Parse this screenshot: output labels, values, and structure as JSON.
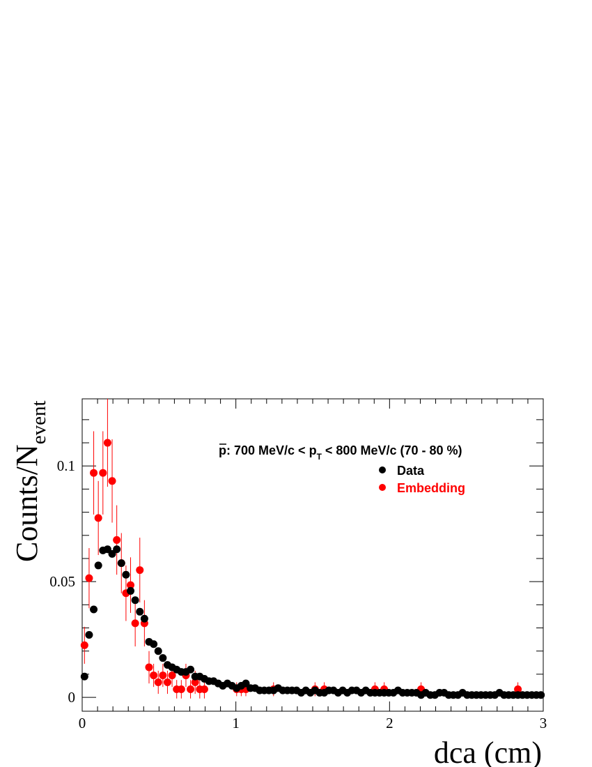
{
  "chart_data": {
    "type": "scatter",
    "title": "",
    "annotation": {
      "particle": "p",
      "text": ": 700 MeV/c < p",
      "subscript": "T",
      "text_after": " < 800 MeV/c (70 - 80 %)"
    },
    "xlabel": "dca (cm)",
    "ylabel": "Counts/N",
    "ylabel_subscript": "event",
    "xlim": [
      0,
      3
    ],
    "ylim": [
      -0.006,
      0.129
    ],
    "x_ticks": [
      {
        "value": 0,
        "label": "0"
      },
      {
        "value": 1,
        "label": "1"
      },
      {
        "value": 2,
        "label": "2"
      },
      {
        "value": 3,
        "label": "3"
      }
    ],
    "y_ticks": [
      {
        "value": 0,
        "label": "0"
      },
      {
        "value": 0.05,
        "label": "0.05"
      },
      {
        "value": 0.1,
        "label": "0.1"
      }
    ],
    "legend_position": "top-right",
    "grid": false,
    "series": [
      {
        "name": "Data",
        "color": "#000000",
        "x": [
          0.015,
          0.045,
          0.075,
          0.105,
          0.135,
          0.165,
          0.195,
          0.225,
          0.255,
          0.285,
          0.315,
          0.345,
          0.375,
          0.405,
          0.435,
          0.465,
          0.495,
          0.525,
          0.555,
          0.585,
          0.615,
          0.645,
          0.675,
          0.705,
          0.735,
          0.765,
          0.795,
          0.825,
          0.855,
          0.885,
          0.915,
          0.945,
          0.975,
          1.005,
          1.035,
          1.065,
          1.095,
          1.125,
          1.155,
          1.185,
          1.215,
          1.245,
          1.275,
          1.305,
          1.335,
          1.365,
          1.395,
          1.425,
          1.455,
          1.485,
          1.515,
          1.545,
          1.575,
          1.605,
          1.635,
          1.665,
          1.695,
          1.725,
          1.755,
          1.785,
          1.815,
          1.845,
          1.875,
          1.905,
          1.935,
          1.965,
          1.995,
          2.025,
          2.055,
          2.085,
          2.115,
          2.145,
          2.175,
          2.205,
          2.235,
          2.265,
          2.295,
          2.325,
          2.355,
          2.385,
          2.415,
          2.445,
          2.475,
          2.505,
          2.535,
          2.565,
          2.595,
          2.625,
          2.655,
          2.685,
          2.715,
          2.745,
          2.775,
          2.805,
          2.835,
          2.865,
          2.895,
          2.925,
          2.955,
          2.985
        ],
        "y": [
          0.009,
          0.027,
          0.038,
          0.057,
          0.0635,
          0.064,
          0.062,
          0.064,
          0.058,
          0.053,
          0.046,
          0.042,
          0.037,
          0.034,
          0.024,
          0.023,
          0.02,
          0.017,
          0.014,
          0.013,
          0.012,
          0.011,
          0.011,
          0.012,
          0.009,
          0.009,
          0.008,
          0.007,
          0.007,
          0.006,
          0.005,
          0.006,
          0.005,
          0.004,
          0.005,
          0.006,
          0.004,
          0.004,
          0.003,
          0.003,
          0.003,
          0.003,
          0.004,
          0.003,
          0.003,
          0.003,
          0.003,
          0.002,
          0.003,
          0.002,
          0.003,
          0.002,
          0.002,
          0.003,
          0.003,
          0.002,
          0.003,
          0.002,
          0.003,
          0.003,
          0.002,
          0.003,
          0.002,
          0.002,
          0.002,
          0.002,
          0.002,
          0.002,
          0.003,
          0.002,
          0.002,
          0.002,
          0.002,
          0.001,
          0.002,
          0.001,
          0.001,
          0.002,
          0.002,
          0.001,
          0.001,
          0.001,
          0.002,
          0.001,
          0.001,
          0.001,
          0.001,
          0.001,
          0.001,
          0.001,
          0.002,
          0.001,
          0.001,
          0.001,
          0.001,
          0.001,
          0.001,
          0.001,
          0.001,
          0.001
        ],
        "yerr": [
          0.0005,
          0.0008,
          0.0008,
          0.0015,
          0.0015,
          0.0015,
          0.0015,
          0.0015,
          0.0015,
          0.0013,
          0.0013,
          0.0012,
          0.0012,
          0.0012,
          0.001,
          0.001,
          0.0009,
          0.0009,
          0.0008,
          0.0008,
          0.0008,
          0.0007,
          0.0007,
          0.0007,
          0.0006,
          0.0006,
          0.0006,
          0.0005,
          0.0005,
          0.0005,
          0.0005,
          0.0005,
          0.0005,
          0.0004,
          0.0004,
          0.0004,
          0.0004,
          0.0004,
          0.0003,
          0.0003,
          0.0003,
          0.0003,
          0.0003,
          0.0003,
          0.0003,
          0.0003,
          0.0003,
          0.0003,
          0.0003,
          0.0003,
          0.0003,
          0.0003,
          0.0003,
          0.0003,
          0.0003,
          0.0003,
          0.0003,
          0.0003,
          0.0003,
          0.0003,
          0.0003,
          0.0003,
          0.0003,
          0.0003,
          0.0003,
          0.0003,
          0.0003,
          0.0003,
          0.0003,
          0.0003,
          0.0003,
          0.0003,
          0.0003,
          0.0002,
          0.0002,
          0.0002,
          0.0002,
          0.0002,
          0.0002,
          0.0002,
          0.0002,
          0.0002,
          0.0002,
          0.0002,
          0.0002,
          0.0002,
          0.0002,
          0.0002,
          0.0002,
          0.0002,
          0.0002,
          0.0002,
          0.0002,
          0.0002,
          0.0002,
          0.0002,
          0.0002,
          0.0002,
          0.0002,
          0.0002
        ]
      },
      {
        "name": "Embedding",
        "color": "#ff0000",
        "x": [
          0.015,
          0.045,
          0.075,
          0.105,
          0.135,
          0.165,
          0.195,
          0.225,
          0.255,
          0.285,
          0.315,
          0.345,
          0.375,
          0.405,
          0.435,
          0.465,
          0.495,
          0.525,
          0.555,
          0.585,
          0.615,
          0.645,
          0.675,
          0.705,
          0.735,
          0.765,
          0.795,
          1.005,
          1.035,
          1.065,
          1.245,
          1.515,
          1.575,
          1.905,
          1.965,
          2.205,
          2.835
        ],
        "y": [
          0.0225,
          0.0515,
          0.097,
          0.0775,
          0.097,
          0.11,
          0.0935,
          0.068,
          0.058,
          0.045,
          0.0485,
          0.032,
          0.055,
          0.032,
          0.013,
          0.0095,
          0.0065,
          0.0095,
          0.0065,
          0.0095,
          0.0035,
          0.0035,
          0.0095,
          0.0035,
          0.0065,
          0.0035,
          0.0035,
          0.0035,
          0.0035,
          0.0035,
          0.0035,
          0.0035,
          0.0035,
          0.0035,
          0.0035,
          0.0035,
          0.0035
        ],
        "yerr": [
          0.008,
          0.013,
          0.018,
          0.016,
          0.018,
          0.019,
          0.018,
          0.015,
          0.013,
          0.012,
          0.012,
          0.01,
          0.014,
          0.01,
          0.007,
          0.005,
          0.005,
          0.005,
          0.005,
          0.005,
          0.004,
          0.004,
          0.005,
          0.004,
          0.005,
          0.004,
          0.004,
          0.003,
          0.003,
          0.003,
          0.003,
          0.003,
          0.003,
          0.003,
          0.003,
          0.003,
          0.003
        ]
      }
    ]
  }
}
